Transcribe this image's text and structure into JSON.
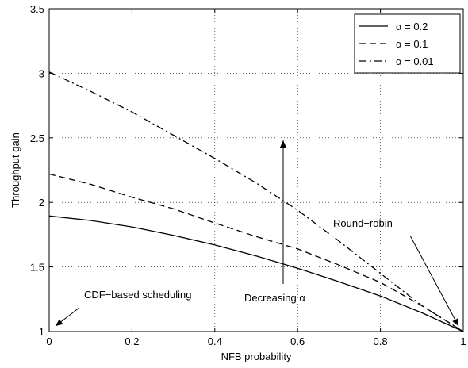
{
  "chart_data": {
    "type": "line",
    "title": "",
    "xlabel": "NFB probability",
    "ylabel": "Throughput gain",
    "xlim": [
      0,
      1
    ],
    "ylim": [
      1,
      3.5
    ],
    "x_ticks": [
      0,
      0.2,
      0.4,
      0.6,
      0.8,
      1
    ],
    "y_ticks": [
      1,
      1.5,
      2,
      2.5,
      3,
      3.5
    ],
    "x_tick_labels": [
      "0",
      "0.2",
      "0.4",
      "0.6",
      "0.8",
      "1"
    ],
    "y_tick_labels": [
      "1",
      "1.5",
      "2",
      "2.5",
      "3",
      "3.5"
    ],
    "grid": true,
    "legend_position": "top-right",
    "series": [
      {
        "name": "α = 0.2",
        "line_style": "solid",
        "x": [
          0,
          0.1,
          0.2,
          0.3,
          0.4,
          0.5,
          0.6,
          0.7,
          0.8,
          0.9,
          1.0
        ],
        "y": [
          1.895,
          1.86,
          1.81,
          1.745,
          1.67,
          1.585,
          1.49,
          1.385,
          1.275,
          1.145,
          1.0
        ]
      },
      {
        "name": "α = 0.1",
        "line_style": "dashed",
        "x": [
          0,
          0.1,
          0.2,
          0.3,
          0.4,
          0.5,
          0.6,
          0.7,
          0.8,
          0.9,
          1.0
        ],
        "y": [
          2.22,
          2.14,
          2.04,
          1.95,
          1.84,
          1.735,
          1.64,
          1.515,
          1.38,
          1.2,
          1.0
        ]
      },
      {
        "name": "α = 0.01",
        "line_style": "dashdot",
        "x": [
          0,
          0.1,
          0.2,
          0.3,
          0.4,
          0.5,
          0.6,
          0.7,
          0.8,
          0.9,
          1.0
        ],
        "y": [
          3.01,
          2.86,
          2.7,
          2.52,
          2.34,
          2.15,
          1.94,
          1.7,
          1.45,
          1.2,
          1.0
        ]
      }
    ],
    "annotations": [
      {
        "text": "Round−robin"
      },
      {
        "text": "CDF−based scheduling"
      },
      {
        "text": "Decreasing α"
      }
    ]
  }
}
